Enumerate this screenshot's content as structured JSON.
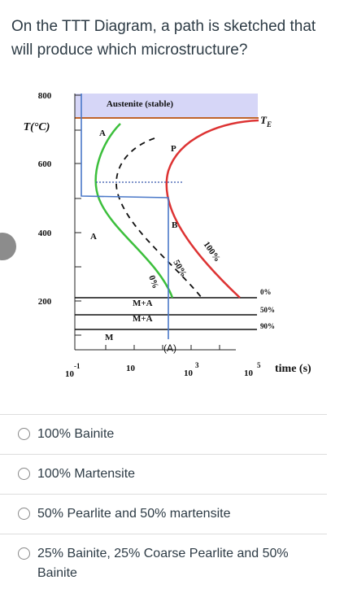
{
  "question": "On the TTT Diagram, a path is sketched that will produce which microstructure?",
  "diagram": {
    "y_axis_label": "T(°C)",
    "y_tick_labels": [
      "800",
      "600",
      "400",
      "200"
    ],
    "x_tick_labels": [
      {
        "base": "10",
        "exp": "-1"
      },
      {
        "base": "10",
        "exp": ""
      },
      {
        "base": "10",
        "exp": "3"
      },
      {
        "base": "10",
        "exp": "5"
      }
    ],
    "x_axis_label": "time (s)",
    "austenite_label": "Austenite (stable)",
    "te_label": {
      "base": "T",
      "sub": "E"
    },
    "region_labels": [
      "A",
      "P",
      "B",
      "A",
      "M",
      "M+A",
      "M+A",
      "(A)"
    ],
    "curve_labels": [
      "0%",
      "50%",
      "100%"
    ],
    "martensite_labels": [
      "0%",
      "50%",
      "90%"
    ]
  },
  "options": [
    "100% Bainite",
    "100% Martensite",
    "50% Pearlite and 50% martensite",
    "25% Bainite, 25% Coarse Pearlite and 50% Bainite"
  ]
}
